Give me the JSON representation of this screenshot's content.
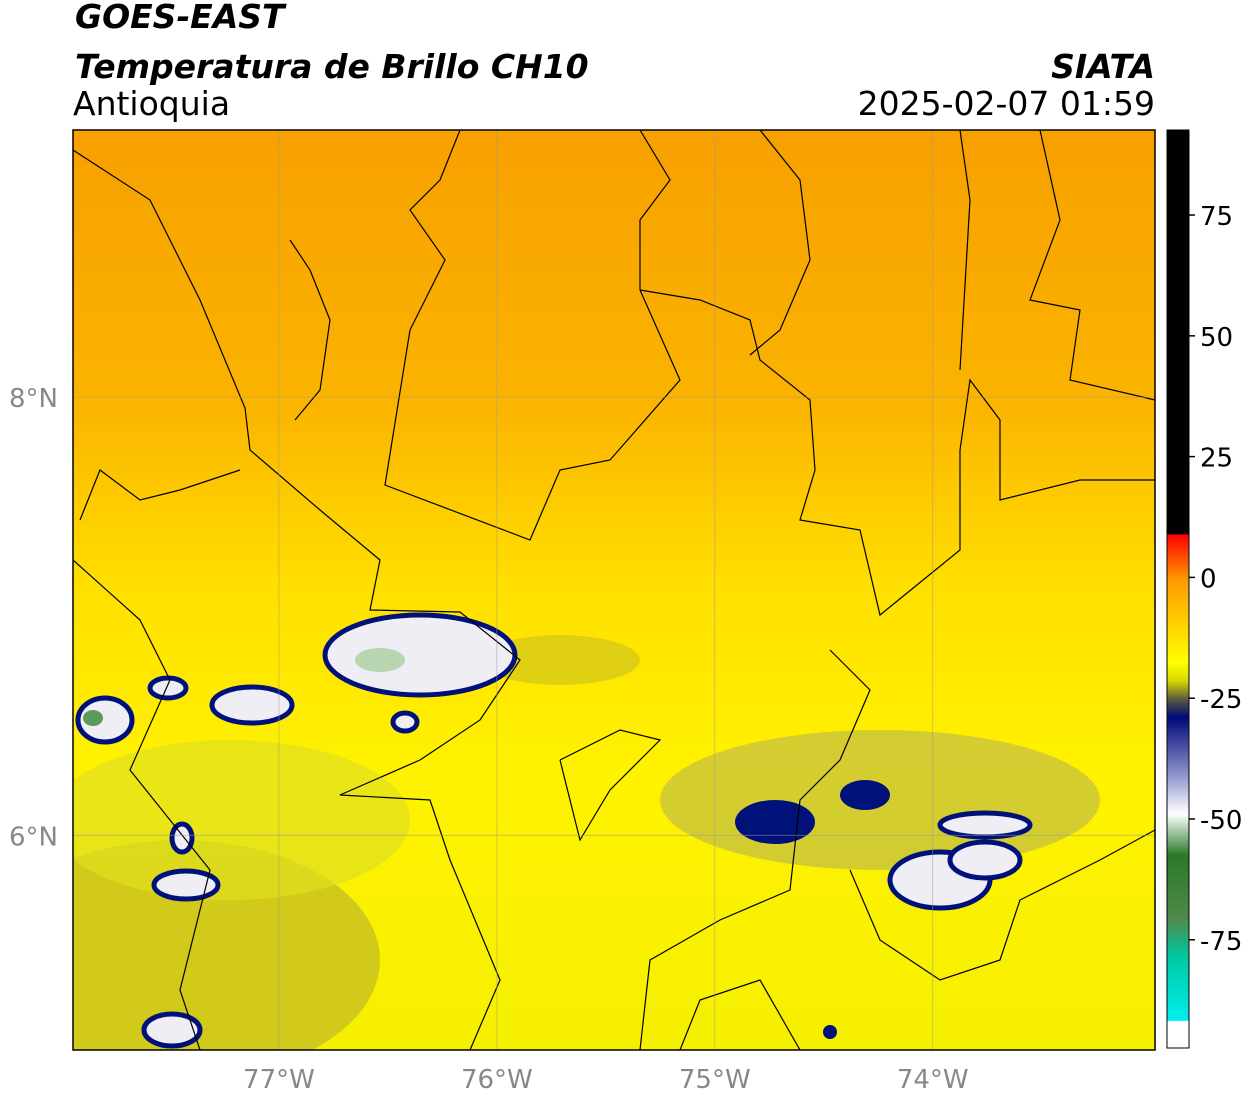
{
  "header": {
    "title": "GOES-EAST",
    "subtitle": "Temperatura de Brillo CH10",
    "region": "Antioquia",
    "source": "SIATA",
    "datetime": "2025-02-07 01:59"
  },
  "map": {
    "xlim": [
      -77.945,
      -72.98
    ],
    "ylim": [
      5.02,
      9.22
    ],
    "xticks": [
      {
        "value": -77,
        "label": "77°W"
      },
      {
        "value": -76,
        "label": "76°W"
      },
      {
        "value": -75,
        "label": "75°W"
      },
      {
        "value": -74,
        "label": "74°W"
      }
    ],
    "yticks": [
      {
        "value": 6,
        "label": "6°N"
      },
      {
        "value": 8,
        "label": "8°N"
      }
    ],
    "grid": true
  },
  "colorbar": {
    "lim": [
      -97.4,
      92.6
    ],
    "ticks": [
      75,
      50,
      25,
      0,
      -25,
      -50,
      -75
    ]
  }
}
